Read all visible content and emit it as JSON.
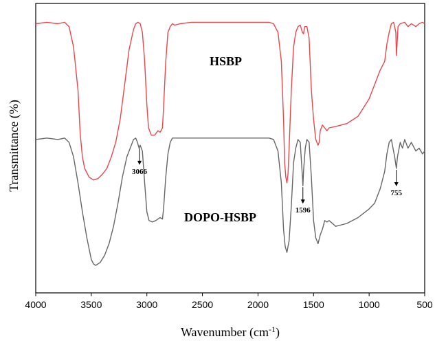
{
  "chart_data": {
    "type": "line",
    "title": "",
    "xlabel": "Wavenumber (cm",
    "xlabel_sup": "-1",
    "xlabel_end": ")",
    "ylabel": "Transmittance (%)",
    "xlim": [
      4000,
      500
    ],
    "x_reversed": true,
    "x_ticks": [
      4000,
      3500,
      3000,
      2500,
      2000,
      1500,
      1000,
      500
    ],
    "y_ticks_shown": false,
    "grid": false,
    "legend": "none",
    "series": [
      {
        "name": "HSBP",
        "color": "#e8474b",
        "points": [
          [
            4000,
            0.93
          ],
          [
            3900,
            0.935
          ],
          [
            3800,
            0.93
          ],
          [
            3740,
            0.935
          ],
          [
            3700,
            0.92
          ],
          [
            3660,
            0.85
          ],
          [
            3620,
            0.7
          ],
          [
            3600,
            0.55
          ],
          [
            3580,
            0.47
          ],
          [
            3560,
            0.43
          ],
          [
            3520,
            0.4
          ],
          [
            3480,
            0.39
          ],
          [
            3440,
            0.395
          ],
          [
            3400,
            0.41
          ],
          [
            3360,
            0.43
          ],
          [
            3320,
            0.47
          ],
          [
            3280,
            0.52
          ],
          [
            3240,
            0.6
          ],
          [
            3200,
            0.72
          ],
          [
            3160,
            0.84
          ],
          [
            3120,
            0.91
          ],
          [
            3100,
            0.93
          ],
          [
            3080,
            0.935
          ],
          [
            3060,
            0.93
          ],
          [
            3040,
            0.9
          ],
          [
            3020,
            0.8
          ],
          [
            3000,
            0.65
          ],
          [
            2985,
            0.57
          ],
          [
            2960,
            0.545
          ],
          [
            2930,
            0.545
          ],
          [
            2900,
            0.56
          ],
          [
            2880,
            0.555
          ],
          [
            2860,
            0.57
          ],
          [
            2850,
            0.64
          ],
          [
            2830,
            0.8
          ],
          [
            2810,
            0.9
          ],
          [
            2790,
            0.92
          ],
          [
            2770,
            0.93
          ],
          [
            2750,
            0.925
          ],
          [
            2700,
            0.93
          ],
          [
            2600,
            0.935
          ],
          [
            2500,
            0.935
          ],
          [
            2400,
            0.935
          ],
          [
            2300,
            0.935
          ],
          [
            2200,
            0.935
          ],
          [
            2100,
            0.935
          ],
          [
            2000,
            0.935
          ],
          [
            1900,
            0.935
          ],
          [
            1860,
            0.93
          ],
          [
            1820,
            0.9
          ],
          [
            1790,
            0.8
          ],
          [
            1770,
            0.6
          ],
          [
            1760,
            0.45
          ],
          [
            1750,
            0.4
          ],
          [
            1740,
            0.38
          ],
          [
            1730,
            0.41
          ],
          [
            1720,
            0.5
          ],
          [
            1700,
            0.7
          ],
          [
            1680,
            0.85
          ],
          [
            1660,
            0.9
          ],
          [
            1640,
            0.92
          ],
          [
            1620,
            0.925
          ],
          [
            1600,
            0.9
          ],
          [
            1590,
            0.895
          ],
          [
            1580,
            0.92
          ],
          [
            1560,
            0.92
          ],
          [
            1540,
            0.88
          ],
          [
            1520,
            0.7
          ],
          [
            1500,
            0.6
          ],
          [
            1480,
            0.53
          ],
          [
            1460,
            0.51
          ],
          [
            1450,
            0.52
          ],
          [
            1440,
            0.56
          ],
          [
            1420,
            0.58
          ],
          [
            1400,
            0.57
          ],
          [
            1380,
            0.56
          ],
          [
            1360,
            0.57
          ],
          [
            1300,
            0.575
          ],
          [
            1200,
            0.585
          ],
          [
            1100,
            0.61
          ],
          [
            1000,
            0.67
          ],
          [
            950,
            0.72
          ],
          [
            900,
            0.77
          ],
          [
            860,
            0.8
          ],
          [
            840,
            0.86
          ],
          [
            820,
            0.9
          ],
          [
            800,
            0.93
          ],
          [
            780,
            0.935
          ],
          [
            770,
            0.92
          ],
          [
            760,
            0.9
          ],
          [
            755,
            0.82
          ],
          [
            750,
            0.85
          ],
          [
            740,
            0.92
          ],
          [
            720,
            0.93
          ],
          [
            680,
            0.935
          ],
          [
            650,
            0.92
          ],
          [
            620,
            0.93
          ],
          [
            580,
            0.92
          ],
          [
            550,
            0.93
          ],
          [
            520,
            0.935
          ],
          [
            500,
            0.93
          ]
        ]
      },
      {
        "name": "DOPO-HSBP",
        "color": "#666666",
        "points": [
          [
            4000,
            0.53
          ],
          [
            3900,
            0.535
          ],
          [
            3800,
            0.53
          ],
          [
            3740,
            0.535
          ],
          [
            3700,
            0.52
          ],
          [
            3660,
            0.47
          ],
          [
            3620,
            0.38
          ],
          [
            3580,
            0.28
          ],
          [
            3540,
            0.19
          ],
          [
            3500,
            0.115
          ],
          [
            3480,
            0.1
          ],
          [
            3460,
            0.095
          ],
          [
            3420,
            0.105
          ],
          [
            3380,
            0.13
          ],
          [
            3340,
            0.17
          ],
          [
            3300,
            0.23
          ],
          [
            3260,
            0.31
          ],
          [
            3220,
            0.4
          ],
          [
            3180,
            0.47
          ],
          [
            3140,
            0.51
          ],
          [
            3120,
            0.53
          ],
          [
            3100,
            0.535
          ],
          [
            3085,
            0.52
          ],
          [
            3070,
            0.5
          ],
          [
            3060,
            0.51
          ],
          [
            3040,
            0.49
          ],
          [
            3020,
            0.38
          ],
          [
            3000,
            0.28
          ],
          [
            2980,
            0.25
          ],
          [
            2950,
            0.245
          ],
          [
            2920,
            0.25
          ],
          [
            2900,
            0.255
          ],
          [
            2880,
            0.26
          ],
          [
            2860,
            0.255
          ],
          [
            2850,
            0.29
          ],
          [
            2830,
            0.4
          ],
          [
            2810,
            0.48
          ],
          [
            2790,
            0.52
          ],
          [
            2770,
            0.535
          ],
          [
            2700,
            0.535
          ],
          [
            2600,
            0.535
          ],
          [
            2500,
            0.535
          ],
          [
            2400,
            0.535
          ],
          [
            2300,
            0.535
          ],
          [
            2200,
            0.535
          ],
          [
            2100,
            0.535
          ],
          [
            2000,
            0.535
          ],
          [
            1900,
            0.535
          ],
          [
            1860,
            0.53
          ],
          [
            1820,
            0.49
          ],
          [
            1790,
            0.38
          ],
          [
            1770,
            0.22
          ],
          [
            1755,
            0.16
          ],
          [
            1740,
            0.14
          ],
          [
            1720,
            0.18
          ],
          [
            1700,
            0.3
          ],
          [
            1680,
            0.45
          ],
          [
            1660,
            0.5
          ],
          [
            1640,
            0.53
          ],
          [
            1620,
            0.52
          ],
          [
            1600,
            0.4
          ],
          [
            1596,
            0.37
          ],
          [
            1590,
            0.42
          ],
          [
            1575,
            0.5
          ],
          [
            1560,
            0.53
          ],
          [
            1540,
            0.52
          ],
          [
            1520,
            0.4
          ],
          [
            1500,
            0.25
          ],
          [
            1480,
            0.19
          ],
          [
            1460,
            0.17
          ],
          [
            1440,
            0.2
          ],
          [
            1420,
            0.22
          ],
          [
            1400,
            0.25
          ],
          [
            1380,
            0.245
          ],
          [
            1360,
            0.25
          ],
          [
            1300,
            0.23
          ],
          [
            1200,
            0.24
          ],
          [
            1100,
            0.26
          ],
          [
            1000,
            0.29
          ],
          [
            950,
            0.31
          ],
          [
            900,
            0.36
          ],
          [
            860,
            0.42
          ],
          [
            840,
            0.48
          ],
          [
            820,
            0.52
          ],
          [
            800,
            0.53
          ],
          [
            780,
            0.49
          ],
          [
            770,
            0.47
          ],
          [
            755,
            0.43
          ],
          [
            745,
            0.47
          ],
          [
            730,
            0.5
          ],
          [
            720,
            0.52
          ],
          [
            700,
            0.5
          ],
          [
            680,
            0.53
          ],
          [
            650,
            0.5
          ],
          [
            620,
            0.52
          ],
          [
            580,
            0.49
          ],
          [
            550,
            0.5
          ],
          [
            520,
            0.48
          ],
          [
            500,
            0.49
          ]
        ]
      }
    ],
    "series_labels": [
      "HSBP",
      "DOPO-HSBP"
    ],
    "annotations": [
      {
        "text": "3066",
        "x": 3066
      },
      {
        "text": "1596",
        "x": 1596
      },
      {
        "text": "755",
        "x": 755
      }
    ]
  }
}
